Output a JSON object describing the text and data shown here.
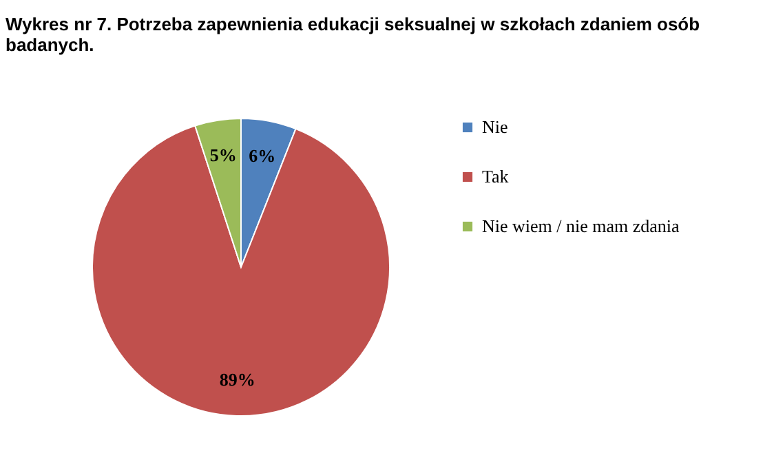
{
  "chart_data": {
    "type": "pie",
    "title": "Wykres nr 7. Potrzeba zapewnienia edukacji seksualnej w szkołach zdaniem osób badanych.",
    "categories": [
      "Nie",
      "Tak",
      "Nie wiem / nie mam zdania"
    ],
    "values": [
      6,
      89,
      5
    ],
    "colors": [
      "#4f81bd",
      "#c0504d",
      "#9bbb59"
    ],
    "value_labels": [
      "6%",
      "89%",
      "5%"
    ],
    "legend": "right"
  }
}
